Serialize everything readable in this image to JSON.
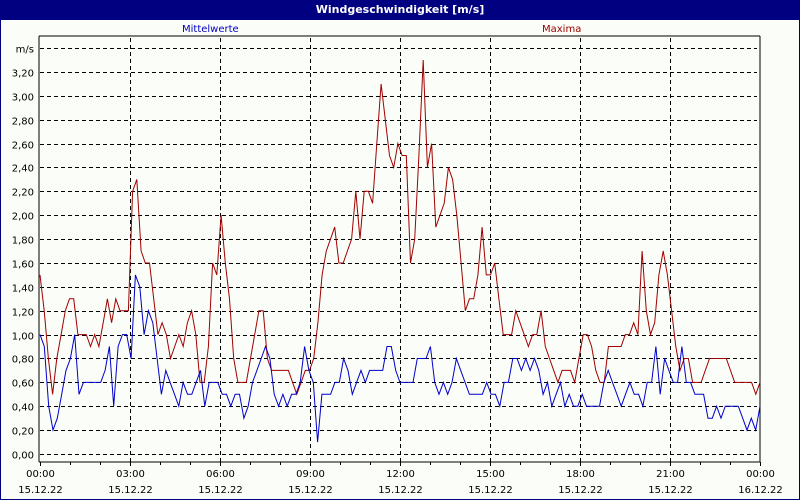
{
  "window": {
    "title": "Windgeschwindigkeit [m/s]"
  },
  "legend": {
    "series_1": "Mittelwerte",
    "series_2": "Maxima"
  },
  "colors": {
    "titlebar": "#000080",
    "mean": "#0000cc",
    "max": "#a00000",
    "background": "#fbfdf8"
  },
  "chart_data": {
    "type": "line",
    "title": "Windgeschwindigkeit [m/s]",
    "ylabel": "m/s",
    "xlabel": "",
    "ylim": [
      0,
      3.4
    ],
    "grid": true,
    "legend_position": "top",
    "y_ticks": [
      "0,00",
      "0,20",
      "0,40",
      "0,60",
      "0,80",
      "1,00",
      "1,20",
      "1,40",
      "1,60",
      "1,80",
      "2,00",
      "2,20",
      "2,40",
      "2,60",
      "2,80",
      "3,00",
      "3,20"
    ],
    "x_ticks": [
      {
        "time": "00:00",
        "date": "15.12.22"
      },
      {
        "time": "03:00",
        "date": "15.12.22"
      },
      {
        "time": "06:00",
        "date": "15.12.22"
      },
      {
        "time": "09:00",
        "date": "15.12.22"
      },
      {
        "time": "12:00",
        "date": "15.12.22"
      },
      {
        "time": "15:00",
        "date": "15.12.22"
      },
      {
        "time": "18:00",
        "date": "15.12.22"
      },
      {
        "time": "21:00",
        "date": "15.12.22"
      },
      {
        "time": "00:00",
        "date": "16.12.22"
      }
    ],
    "x_interval_minutes": 10,
    "series": [
      {
        "name": "Mittelwerte",
        "color": "#0000cc",
        "values": [
          1.0,
          0.9,
          0.4,
          0.2,
          0.3,
          0.5,
          0.7,
          0.8,
          1.0,
          0.5,
          0.6,
          0.6,
          0.6,
          0.6,
          0.6,
          0.7,
          0.9,
          0.4,
          0.9,
          1.0,
          1.0,
          0.8,
          1.5,
          1.4,
          1.0,
          1.2,
          1.1,
          0.8,
          0.5,
          0.7,
          0.6,
          0.5,
          0.4,
          0.6,
          0.5,
          0.5,
          0.6,
          0.7,
          0.4,
          0.6,
          0.6,
          0.6,
          0.5,
          0.5,
          0.4,
          0.5,
          0.5,
          0.3,
          0.4,
          0.6,
          0.7,
          0.8,
          0.9,
          0.8,
          0.5,
          0.4,
          0.5,
          0.4,
          0.5,
          0.5,
          0.6,
          0.9,
          0.7,
          0.6,
          0.1,
          0.5,
          0.5,
          0.5,
          0.6,
          0.6,
          0.8,
          0.7,
          0.5,
          0.6,
          0.7,
          0.6,
          0.7,
          0.7,
          0.7,
          0.7,
          0.9,
          0.9,
          0.7,
          0.6,
          0.6,
          0.6,
          0.6,
          0.8,
          0.8,
          0.8,
          0.9,
          0.6,
          0.5,
          0.6,
          0.5,
          0.6,
          0.8,
          0.7,
          0.6,
          0.5,
          0.5,
          0.5,
          0.5,
          0.6,
          0.5,
          0.5,
          0.4,
          0.6,
          0.6,
          0.8,
          0.8,
          0.7,
          0.8,
          0.7,
          0.8,
          0.7,
          0.5,
          0.6,
          0.4,
          0.5,
          0.6,
          0.4,
          0.5,
          0.4,
          0.4,
          0.5,
          0.4,
          0.4,
          0.4,
          0.4,
          0.6,
          0.7,
          0.6,
          0.5,
          0.4,
          0.5,
          0.6,
          0.5,
          0.5,
          0.4,
          0.6,
          0.6,
          0.9,
          0.5,
          0.8,
          0.7,
          0.6,
          0.6,
          0.9,
          0.6,
          0.6,
          0.5,
          0.5,
          0.5,
          0.3,
          0.3,
          0.4,
          0.3,
          0.4,
          0.4,
          0.4,
          0.4,
          0.3,
          0.2,
          0.3,
          0.2,
          0.4
        ]
      },
      {
        "name": "Maxima",
        "color": "#a00000",
        "values": [
          1.5,
          1.2,
          0.8,
          0.5,
          0.8,
          1.0,
          1.2,
          1.3,
          1.3,
          1.0,
          1.0,
          1.0,
          0.9,
          1.0,
          0.9,
          1.1,
          1.3,
          1.1,
          1.3,
          1.2,
          1.2,
          1.2,
          2.2,
          2.3,
          1.7,
          1.6,
          1.6,
          1.3,
          1.0,
          1.1,
          1.0,
          0.8,
          0.9,
          1.0,
          0.9,
          1.1,
          1.2,
          1.0,
          0.6,
          0.6,
          0.9,
          1.6,
          1.5,
          2.0,
          1.6,
          1.3,
          0.8,
          0.6,
          0.6,
          0.6,
          0.8,
          1.0,
          1.2,
          1.2,
          0.8,
          0.7,
          0.7,
          0.7,
          0.7,
          0.7,
          0.6,
          0.5,
          0.6,
          0.7,
          0.7,
          0.8,
          1.1,
          1.5,
          1.7,
          1.8,
          1.9,
          1.6,
          1.6,
          1.7,
          1.8,
          2.2,
          1.8,
          2.2,
          2.2,
          2.1,
          2.6,
          3.1,
          2.8,
          2.5,
          2.4,
          2.6,
          2.5,
          2.5,
          1.6,
          1.8,
          2.5,
          3.3,
          2.4,
          2.6,
          1.9,
          2.0,
          2.1,
          2.4,
          2.3,
          2.0,
          1.6,
          1.2,
          1.3,
          1.3,
          1.5,
          1.9,
          1.5,
          1.5,
          1.6,
          1.3,
          1.0,
          1.0,
          1.0,
          1.2,
          1.1,
          1.0,
          0.9,
          1.0,
          1.0,
          1.2,
          0.9,
          0.8,
          0.7,
          0.6,
          0.7,
          0.7,
          0.7,
          0.6,
          0.8,
          1.0,
          1.0,
          0.9,
          0.7,
          0.6,
          0.6,
          0.9,
          0.9,
          0.9,
          0.9,
          1.0,
          1.0,
          1.1,
          1.0,
          1.7,
          1.2,
          1.0,
          1.1,
          1.5,
          1.7,
          1.5,
          1.2,
          0.9,
          0.7,
          0.8,
          0.8,
          0.6,
          0.6,
          0.6,
          0.7,
          0.8,
          0.8,
          0.8,
          0.8,
          0.8,
          0.7,
          0.6,
          0.6,
          0.6,
          0.6,
          0.6,
          0.5,
          0.6
        ]
      }
    ]
  }
}
